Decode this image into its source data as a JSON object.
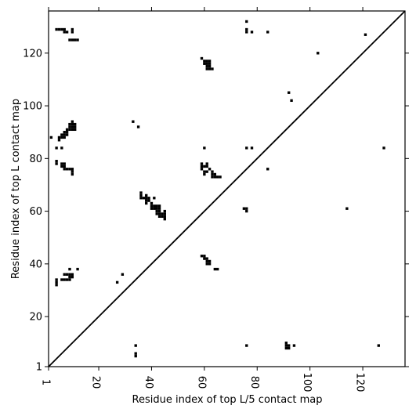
{
  "chart_data": {
    "type": "scatter",
    "marker": "square",
    "colors": {
      "background": "#ffffff",
      "point": "#000000",
      "diagonal": "#000000",
      "frame": "#000000"
    },
    "xlabel": "Residue index of top L/5 contact map",
    "ylabel": "Residue index of top L contact map",
    "xlim": [
      1,
      136
    ],
    "ylim": [
      1,
      136
    ],
    "x_ticks": [
      1,
      20,
      40,
      60,
      80,
      100,
      120
    ],
    "y_ticks": [
      1,
      20,
      40,
      60,
      80,
      100,
      120
    ],
    "grid": false,
    "diagonal": true,
    "upper_points": [
      [
        4,
        129
      ],
      [
        5,
        129
      ],
      [
        6,
        129
      ],
      [
        7,
        129
      ],
      [
        7,
        128
      ],
      [
        8,
        128
      ],
      [
        10,
        129
      ],
      [
        10,
        128
      ],
      [
        9,
        125
      ],
      [
        10,
        125
      ],
      [
        11,
        125
      ],
      [
        12,
        125
      ],
      [
        76,
        132
      ],
      [
        76,
        129
      ],
      [
        76,
        128
      ],
      [
        78,
        128
      ],
      [
        84,
        128
      ],
      [
        121,
        127
      ],
      [
        103,
        120
      ],
      [
        59,
        118
      ],
      [
        60,
        117
      ],
      [
        61,
        117
      ],
      [
        62,
        117
      ],
      [
        60,
        116
      ],
      [
        61,
        116
      ],
      [
        62,
        116
      ],
      [
        61,
        115
      ],
      [
        62,
        115
      ],
      [
        61,
        114
      ],
      [
        62,
        114
      ],
      [
        63,
        114
      ],
      [
        92,
        105
      ],
      [
        93,
        102
      ],
      [
        33,
        94
      ],
      [
        35,
        92
      ],
      [
        10,
        94
      ],
      [
        9,
        93
      ],
      [
        10,
        93
      ],
      [
        11,
        93
      ],
      [
        9,
        92
      ],
      [
        10,
        92
      ],
      [
        11,
        92
      ],
      [
        8,
        91
      ],
      [
        9,
        91
      ],
      [
        10,
        91
      ],
      [
        11,
        91
      ],
      [
        7,
        90
      ],
      [
        8,
        90
      ],
      [
        7,
        89
      ],
      [
        8,
        89
      ],
      [
        6,
        89
      ],
      [
        6,
        88
      ],
      [
        7,
        88
      ],
      [
        5,
        88
      ],
      [
        5,
        87
      ],
      [
        2,
        88
      ],
      [
        4,
        84
      ],
      [
        6,
        84
      ],
      [
        60,
        84
      ],
      [
        76,
        84
      ],
      [
        78,
        84
      ],
      [
        128,
        84
      ],
      [
        4,
        79
      ],
      [
        4,
        78
      ],
      [
        6,
        78
      ],
      [
        7,
        78
      ],
      [
        6,
        77
      ],
      [
        7,
        77
      ],
      [
        7,
        76
      ],
      [
        8,
        76
      ],
      [
        9,
        76
      ],
      [
        10,
        76
      ],
      [
        10,
        75
      ],
      [
        10,
        74
      ],
      [
        59,
        78
      ],
      [
        61,
        78
      ],
      [
        59,
        77
      ],
      [
        60,
        77
      ],
      [
        61,
        77
      ],
      [
        62,
        76
      ],
      [
        59,
        76
      ],
      [
        60,
        75
      ],
      [
        61,
        75
      ],
      [
        60,
        74
      ],
      [
        63,
        75
      ],
      [
        63,
        74
      ],
      [
        64,
        74
      ],
      [
        63,
        73
      ],
      [
        64,
        73
      ],
      [
        65,
        73
      ],
      [
        66,
        73
      ],
      [
        84,
        76
      ],
      [
        36,
        67
      ],
      [
        36,
        66
      ],
      [
        38,
        66
      ],
      [
        36,
        65
      ],
      [
        37,
        65
      ],
      [
        38,
        65
      ],
      [
        39,
        65
      ],
      [
        41,
        65
      ],
      [
        38,
        64
      ],
      [
        39,
        64
      ],
      [
        38,
        63
      ],
      [
        40,
        63
      ],
      [
        40,
        62
      ],
      [
        41,
        62
      ],
      [
        42,
        62
      ],
      [
        43,
        62
      ],
      [
        40,
        61
      ],
      [
        41,
        61
      ],
      [
        42,
        61
      ],
      [
        43,
        61
      ],
      [
        42,
        60
      ],
      [
        43,
        60
      ],
      [
        42,
        59
      ],
      [
        43,
        59
      ],
      [
        44,
        59
      ],
      [
        45,
        60
      ],
      [
        45,
        59
      ],
      [
        43,
        58
      ],
      [
        44,
        58
      ],
      [
        45,
        58
      ],
      [
        45,
        57
      ],
      [
        75,
        61
      ],
      [
        76,
        61
      ],
      [
        76,
        60
      ],
      [
        114,
        61
      ],
      [
        59,
        43
      ],
      [
        60,
        43
      ],
      [
        60,
        42
      ],
      [
        61,
        42
      ],
      [
        61,
        41
      ],
      [
        61,
        40
      ],
      [
        62,
        41
      ],
      [
        62,
        40
      ],
      [
        64,
        38
      ],
      [
        65,
        38
      ],
      [
        9,
        38
      ],
      [
        12,
        38
      ],
      [
        7,
        36
      ],
      [
        8,
        36
      ],
      [
        9,
        36
      ],
      [
        10,
        36
      ],
      [
        29,
        36
      ],
      [
        4,
        34
      ],
      [
        6,
        34
      ],
      [
        7,
        34
      ],
      [
        8,
        34
      ],
      [
        9,
        34
      ],
      [
        9,
        35
      ],
      [
        10,
        35
      ],
      [
        4,
        33
      ],
      [
        27,
        33
      ],
      [
        4,
        32
      ]
    ],
    "lower_points": [
      [
        34,
        9
      ],
      [
        34,
        6
      ],
      [
        34,
        5
      ],
      [
        76,
        9
      ],
      [
        91,
        10
      ],
      [
        91,
        9
      ],
      [
        92,
        9
      ],
      [
        91,
        8
      ],
      [
        92,
        8
      ],
      [
        94,
        9
      ],
      [
        126,
        9
      ]
    ]
  }
}
